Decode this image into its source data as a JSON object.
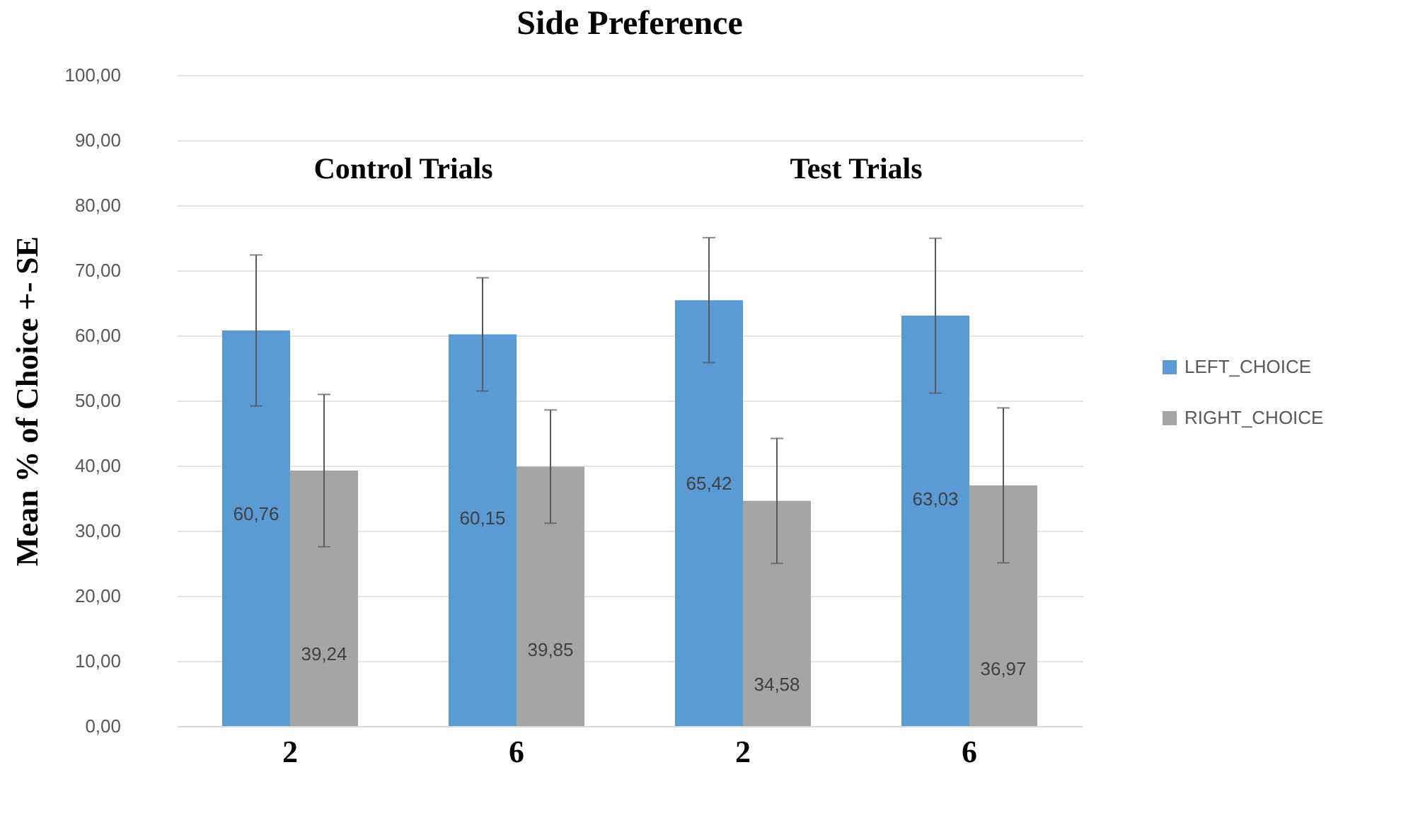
{
  "chart_data": {
    "type": "bar",
    "title": "Side Preference",
    "ylabel": "Mean % of Choice +- SE",
    "categories": [
      "2",
      "6",
      "2",
      "6"
    ],
    "series": [
      {
        "name": "LEFT_CHOICE",
        "color": "#5b9bd5",
        "values": [
          60.76,
          60.15,
          65.42,
          63.03
        ],
        "errors": [
          11.6,
          8.7,
          9.6,
          11.9
        ],
        "value_labels": [
          "60,76",
          "60,15",
          "65,42",
          "63,03"
        ]
      },
      {
        "name": "RIGHT_CHOICE",
        "color": "#a5a5a5",
        "values": [
          39.24,
          39.85,
          34.58,
          36.97
        ],
        "errors": [
          11.7,
          8.7,
          9.6,
          11.9
        ],
        "value_labels": [
          "39,24",
          "39,85",
          "34,58",
          "36,97"
        ]
      }
    ],
    "ylim": [
      0,
      100
    ],
    "yticks": [
      {
        "value": 0,
        "label": "0,00"
      },
      {
        "value": 10,
        "label": "10,00"
      },
      {
        "value": 20,
        "label": "20,00"
      },
      {
        "value": 30,
        "label": "30,00"
      },
      {
        "value": 40,
        "label": "40,00"
      },
      {
        "value": 50,
        "label": "50,00"
      },
      {
        "value": 60,
        "label": "60,00"
      },
      {
        "value": 70,
        "label": "70,00"
      },
      {
        "value": 80,
        "label": "80,00"
      },
      {
        "value": 90,
        "label": "90,00"
      },
      {
        "value": 100,
        "label": "100,00"
      }
    ],
    "annotations": [
      "Control Trials",
      "Test Trials"
    ],
    "grid": "y",
    "legend": "right"
  }
}
